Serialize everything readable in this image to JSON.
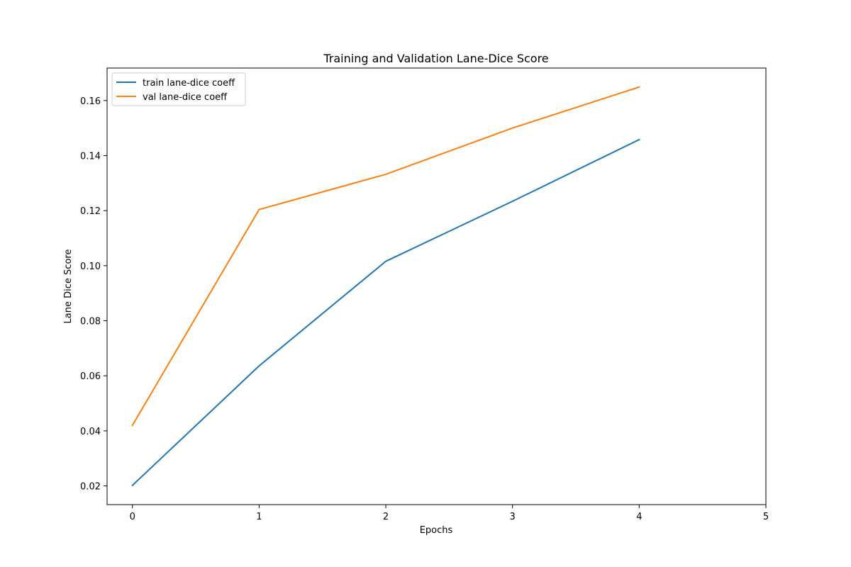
{
  "chart_data": {
    "type": "line",
    "title": "Training and Validation Lane-Dice Score",
    "xlabel": "Epochs",
    "ylabel": "Lane Dice Score",
    "xlim": [
      -0.2,
      5.0
    ],
    "ylim": [
      0.0132,
      0.1718
    ],
    "x_ticks": [
      0,
      1,
      2,
      3,
      4,
      5
    ],
    "x_tick_labels": [
      "0",
      "1",
      "2",
      "3",
      "4",
      "5"
    ],
    "y_ticks": [
      0.02,
      0.04,
      0.06,
      0.08,
      0.1,
      0.12,
      0.14,
      0.16
    ],
    "y_tick_labels": [
      "0.02",
      "0.04",
      "0.06",
      "0.08",
      "0.10",
      "0.12",
      "0.14",
      "0.16"
    ],
    "grid": false,
    "legend_position": "upper-left",
    "x": [
      0,
      1,
      2,
      3,
      4
    ],
    "series": [
      {
        "name": "train lane-dice coeff",
        "color": "#1f77b4",
        "values": [
          0.0202,
          0.0636,
          0.1016,
          0.1234,
          0.1458
        ]
      },
      {
        "name": "val lane-dice coeff",
        "color": "#ff7f0e",
        "values": [
          0.042,
          0.1204,
          0.1332,
          0.15,
          0.1649
        ]
      }
    ]
  }
}
